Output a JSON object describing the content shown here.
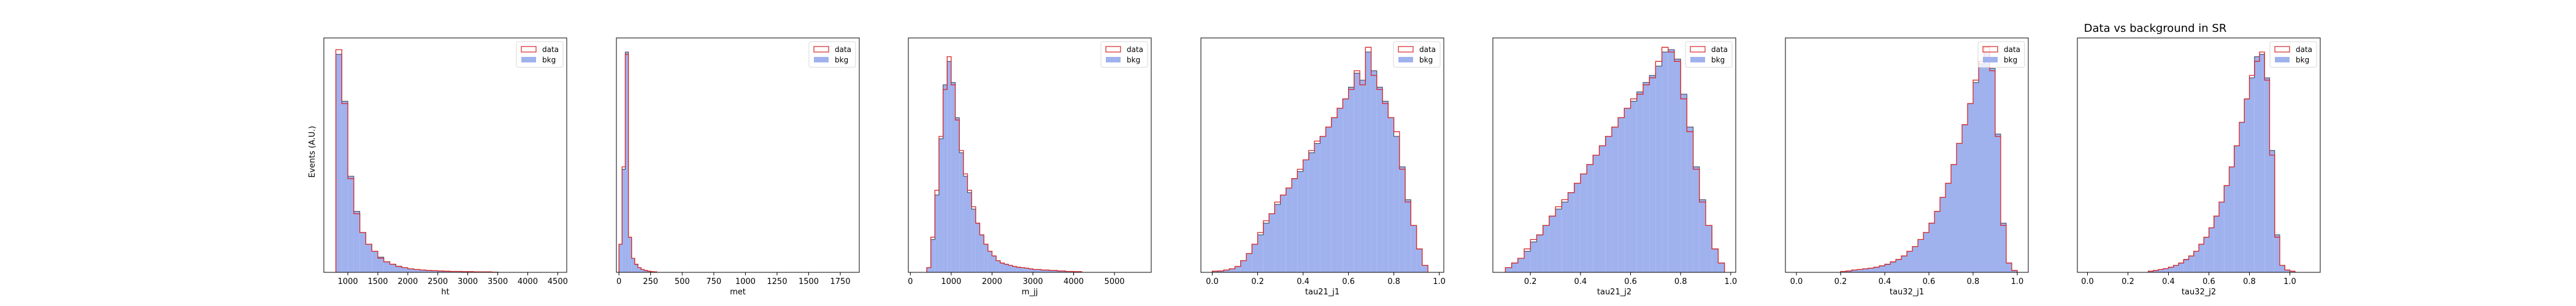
{
  "figure": {
    "title": "Data vs background in SR",
    "ylabel": "Events (A.U.)",
    "colors": {
      "data": "#d62728",
      "bkg_fill": "#a0b2ee",
      "bkg_edge": "#3b3f4f"
    }
  },
  "chart_data": [
    {
      "type": "histogram",
      "xlabel": "ht",
      "xlim": [
        600,
        4650
      ],
      "ylim": [
        0,
        1.0
      ],
      "xticks": [
        1000,
        1500,
        2000,
        2500,
        3000,
        3500,
        4000,
        4500
      ],
      "xticklabels": [
        "1000",
        "1500",
        "2000",
        "2500",
        "3000",
        "3500",
        "4000",
        "4500"
      ],
      "legend": {
        "position": "top-right",
        "entries": [
          "data",
          "bkg"
        ]
      },
      "edges": [
        800,
        900,
        1000,
        1100,
        1200,
        1300,
        1400,
        1500,
        1600,
        1700,
        1800,
        1900,
        2000,
        2100,
        2200,
        2300,
        2400,
        2500,
        2600,
        2700,
        2800,
        2900,
        3000,
        3100,
        3200,
        3300,
        3400,
        3500
      ],
      "series": [
        {
          "name": "data",
          "values": [
            0.95,
            0.72,
            0.4,
            0.25,
            0.17,
            0.12,
            0.09,
            0.06,
            0.045,
            0.035,
            0.025,
            0.02,
            0.015,
            0.012,
            0.01,
            0.008,
            0.007,
            0.006,
            0.005,
            0.004,
            0.004,
            0.003,
            0.003,
            0.002,
            0.002,
            0.002,
            0.001
          ]
        },
        {
          "name": "bkg",
          "values": [
            0.93,
            0.73,
            0.41,
            0.26,
            0.17,
            0.12,
            0.09,
            0.065,
            0.045,
            0.035,
            0.026,
            0.02,
            0.015,
            0.012,
            0.01,
            0.008,
            0.007,
            0.006,
            0.005,
            0.004,
            0.004,
            0.003,
            0.003,
            0.002,
            0.002,
            0.002,
            0.001
          ]
        }
      ]
    },
    {
      "type": "histogram",
      "xlabel": "met",
      "xlim": [
        -20,
        1900
      ],
      "ylim": [
        0,
        1.0
      ],
      "xticks": [
        0,
        250,
        500,
        750,
        1000,
        1250,
        1500,
        1750
      ],
      "xticklabels": [
        "0",
        "250",
        "500",
        "750",
        "1000",
        "1250",
        "1500",
        "1750"
      ],
      "legend": {
        "position": "top-right",
        "entries": [
          "data",
          "bkg"
        ]
      },
      "edges": [
        0,
        25,
        50,
        75,
        100,
        125,
        150,
        175,
        200,
        225,
        250,
        275,
        300
      ],
      "series": [
        {
          "name": "data",
          "values": [
            0.12,
            0.45,
            0.93,
            0.15,
            0.06,
            0.035,
            0.02,
            0.012,
            0.008,
            0.005,
            0.003,
            0.002
          ]
        },
        {
          "name": "bkg",
          "values": [
            0.12,
            0.44,
            0.94,
            0.15,
            0.06,
            0.034,
            0.02,
            0.012,
            0.008,
            0.005,
            0.003,
            0.002
          ]
        }
      ]
    },
    {
      "type": "histogram",
      "xlabel": "m_jj",
      "xlim": [
        -50,
        5900
      ],
      "ylim": [
        0,
        1.0
      ],
      "xticks": [
        0,
        1000,
        2000,
        3000,
        4000,
        5000
      ],
      "xticklabels": [
        "0",
        "1000",
        "2000",
        "3000",
        "4000",
        "5000"
      ],
      "legend": {
        "position": "top-right",
        "entries": [
          "data",
          "bkg"
        ]
      },
      "edges": [
        400,
        500,
        600,
        700,
        800,
        900,
        1000,
        1100,
        1200,
        1300,
        1400,
        1500,
        1600,
        1700,
        1800,
        1900,
        2000,
        2100,
        2200,
        2300,
        2400,
        2500,
        2600,
        2700,
        2800,
        2900,
        3000,
        3200,
        3400,
        3600,
        3800,
        4000,
        4200
      ],
      "series": [
        {
          "name": "data",
          "values": [
            0.02,
            0.15,
            0.35,
            0.58,
            0.78,
            0.92,
            0.8,
            0.65,
            0.52,
            0.42,
            0.35,
            0.28,
            0.21,
            0.16,
            0.12,
            0.09,
            0.07,
            0.05,
            0.04,
            0.035,
            0.03,
            0.025,
            0.022,
            0.02,
            0.018,
            0.015,
            0.012,
            0.01,
            0.008,
            0.006,
            0.004,
            0.003
          ]
        },
        {
          "name": "bkg",
          "values": [
            0.02,
            0.14,
            0.33,
            0.57,
            0.8,
            0.9,
            0.81,
            0.66,
            0.51,
            0.41,
            0.34,
            0.27,
            0.21,
            0.16,
            0.12,
            0.09,
            0.07,
            0.05,
            0.04,
            0.035,
            0.03,
            0.025,
            0.022,
            0.02,
            0.018,
            0.015,
            0.012,
            0.01,
            0.008,
            0.006,
            0.004,
            0.003
          ]
        }
      ]
    },
    {
      "type": "histogram",
      "xlabel": "tau21_j1",
      "xlim": [
        -0.05,
        1.02
      ],
      "ylim": [
        0,
        1.0
      ],
      "xticks": [
        0.0,
        0.2,
        0.4,
        0.6,
        0.8,
        1.0
      ],
      "xticklabels": [
        "0.0",
        "0.2",
        "0.4",
        "0.6",
        "0.8",
        "1.0"
      ],
      "legend": {
        "position": "top-right",
        "entries": [
          "data",
          "bkg"
        ]
      },
      "edges": [
        0.0,
        0.025,
        0.05,
        0.075,
        0.1,
        0.125,
        0.15,
        0.175,
        0.2,
        0.225,
        0.25,
        0.275,
        0.3,
        0.325,
        0.35,
        0.375,
        0.4,
        0.425,
        0.45,
        0.475,
        0.5,
        0.525,
        0.55,
        0.575,
        0.6,
        0.625,
        0.65,
        0.675,
        0.7,
        0.725,
        0.75,
        0.775,
        0.8,
        0.825,
        0.85,
        0.875,
        0.9,
        0.925,
        0.95
      ],
      "series": [
        {
          "name": "data",
          "values": [
            0.005,
            0.006,
            0.01,
            0.015,
            0.025,
            0.05,
            0.08,
            0.12,
            0.17,
            0.22,
            0.25,
            0.3,
            0.33,
            0.36,
            0.4,
            0.44,
            0.48,
            0.52,
            0.56,
            0.58,
            0.62,
            0.66,
            0.7,
            0.74,
            0.78,
            0.86,
            0.8,
            0.96,
            0.84,
            0.78,
            0.72,
            0.66,
            0.6,
            0.44,
            0.3,
            0.2,
            0.1,
            0.03
          ]
        },
        {
          "name": "bkg",
          "values": [
            0.005,
            0.006,
            0.01,
            0.015,
            0.025,
            0.05,
            0.08,
            0.12,
            0.16,
            0.21,
            0.25,
            0.29,
            0.33,
            0.36,
            0.4,
            0.43,
            0.48,
            0.51,
            0.55,
            0.58,
            0.62,
            0.66,
            0.7,
            0.74,
            0.79,
            0.85,
            0.82,
            0.94,
            0.86,
            0.79,
            0.73,
            0.66,
            0.58,
            0.45,
            0.31,
            0.2,
            0.1,
            0.03
          ]
        }
      ]
    },
    {
      "type": "histogram",
      "xlabel": "tau21_j2",
      "xlim": [
        0.05,
        1.02
      ],
      "ylim": [
        0,
        1.0
      ],
      "xticks": [
        0.2,
        0.4,
        0.6,
        0.8,
        1.0
      ],
      "xticklabels": [
        "0.2",
        "0.4",
        "0.6",
        "0.8",
        "1.0"
      ],
      "legend": {
        "position": "top-right",
        "entries": [
          "data",
          "bkg"
        ]
      },
      "edges": [
        0.1,
        0.125,
        0.15,
        0.175,
        0.2,
        0.225,
        0.25,
        0.275,
        0.3,
        0.325,
        0.35,
        0.375,
        0.4,
        0.425,
        0.45,
        0.475,
        0.5,
        0.525,
        0.55,
        0.575,
        0.6,
        0.625,
        0.65,
        0.675,
        0.7,
        0.725,
        0.75,
        0.775,
        0.8,
        0.825,
        0.85,
        0.875,
        0.9,
        0.925,
        0.95,
        0.975
      ],
      "series": [
        {
          "name": "data",
          "values": [
            0.02,
            0.04,
            0.06,
            0.1,
            0.14,
            0.16,
            0.2,
            0.24,
            0.28,
            0.31,
            0.34,
            0.38,
            0.42,
            0.46,
            0.5,
            0.54,
            0.58,
            0.62,
            0.66,
            0.7,
            0.74,
            0.76,
            0.8,
            0.83,
            0.9,
            0.96,
            0.94,
            0.9,
            0.74,
            0.6,
            0.44,
            0.3,
            0.2,
            0.1,
            0.04
          ]
        },
        {
          "name": "bkg",
          "values": [
            0.02,
            0.04,
            0.06,
            0.09,
            0.13,
            0.16,
            0.2,
            0.24,
            0.27,
            0.3,
            0.34,
            0.38,
            0.42,
            0.46,
            0.5,
            0.54,
            0.58,
            0.62,
            0.66,
            0.7,
            0.73,
            0.77,
            0.81,
            0.84,
            0.88,
            0.94,
            0.95,
            0.91,
            0.76,
            0.62,
            0.45,
            0.31,
            0.2,
            0.1,
            0.04
          ]
        }
      ]
    },
    {
      "type": "histogram",
      "xlabel": "tau32_j1",
      "xlim": [
        -0.05,
        1.05
      ],
      "ylim": [
        0,
        1.0
      ],
      "xticks": [
        0.0,
        0.2,
        0.4,
        0.6,
        0.8,
        1.0
      ],
      "xticklabels": [
        "0.0",
        "0.2",
        "0.4",
        "0.6",
        "0.8",
        "1.0"
      ],
      "legend": {
        "position": "top-right",
        "entries": [
          "data",
          "bkg"
        ]
      },
      "edges": [
        0.2,
        0.225,
        0.25,
        0.275,
        0.3,
        0.325,
        0.35,
        0.375,
        0.4,
        0.425,
        0.45,
        0.475,
        0.5,
        0.525,
        0.55,
        0.575,
        0.6,
        0.625,
        0.65,
        0.675,
        0.7,
        0.725,
        0.75,
        0.775,
        0.8,
        0.825,
        0.85,
        0.875,
        0.9,
        0.925,
        0.95,
        0.975,
        1.0
      ],
      "series": [
        {
          "name": "data",
          "values": [
            0.004,
            0.006,
            0.01,
            0.012,
            0.015,
            0.018,
            0.022,
            0.028,
            0.035,
            0.045,
            0.055,
            0.07,
            0.09,
            0.11,
            0.14,
            0.17,
            0.21,
            0.26,
            0.32,
            0.38,
            0.46,
            0.55,
            0.63,
            0.72,
            0.82,
            0.9,
            0.96,
            0.86,
            0.58,
            0.2,
            0.04,
            0.008
          ]
        },
        {
          "name": "bkg",
          "values": [
            0.004,
            0.006,
            0.01,
            0.012,
            0.015,
            0.018,
            0.022,
            0.027,
            0.034,
            0.044,
            0.055,
            0.07,
            0.09,
            0.11,
            0.14,
            0.17,
            0.21,
            0.26,
            0.32,
            0.38,
            0.46,
            0.55,
            0.63,
            0.72,
            0.81,
            0.89,
            0.94,
            0.87,
            0.59,
            0.21,
            0.04,
            0.008
          ]
        }
      ]
    },
    {
      "type": "histogram",
      "xlabel": "tau32_j2",
      "xlim": [
        -0.05,
        1.15
      ],
      "ylim": [
        0,
        1.0
      ],
      "xticks": [
        0.0,
        0.2,
        0.4,
        0.6,
        0.8,
        1.0
      ],
      "xticklabels": [
        "0.0",
        "0.2",
        "0.4",
        "0.6",
        "0.8",
        "1.0"
      ],
      "legend": {
        "position": "top-right",
        "entries": [
          "data",
          "bkg"
        ]
      },
      "edges": [
        0.3,
        0.325,
        0.35,
        0.375,
        0.4,
        0.425,
        0.45,
        0.475,
        0.5,
        0.525,
        0.55,
        0.575,
        0.6,
        0.625,
        0.65,
        0.675,
        0.7,
        0.725,
        0.75,
        0.775,
        0.8,
        0.825,
        0.85,
        0.875,
        0.9,
        0.925,
        0.95,
        0.975,
        1.0,
        1.025
      ],
      "series": [
        {
          "name": "data",
          "values": [
            0.005,
            0.008,
            0.012,
            0.016,
            0.022,
            0.03,
            0.04,
            0.055,
            0.07,
            0.09,
            0.12,
            0.15,
            0.19,
            0.24,
            0.3,
            0.37,
            0.45,
            0.54,
            0.64,
            0.74,
            0.84,
            0.9,
            0.94,
            0.82,
            0.5,
            0.15,
            0.03,
            0.01,
            0.005
          ]
        },
        {
          "name": "bkg",
          "values": [
            0.005,
            0.008,
            0.012,
            0.016,
            0.022,
            0.03,
            0.04,
            0.054,
            0.07,
            0.09,
            0.12,
            0.15,
            0.19,
            0.24,
            0.3,
            0.37,
            0.45,
            0.54,
            0.64,
            0.74,
            0.83,
            0.92,
            0.93,
            0.83,
            0.52,
            0.16,
            0.03,
            0.01,
            0.005
          ]
        }
      ]
    }
  ]
}
